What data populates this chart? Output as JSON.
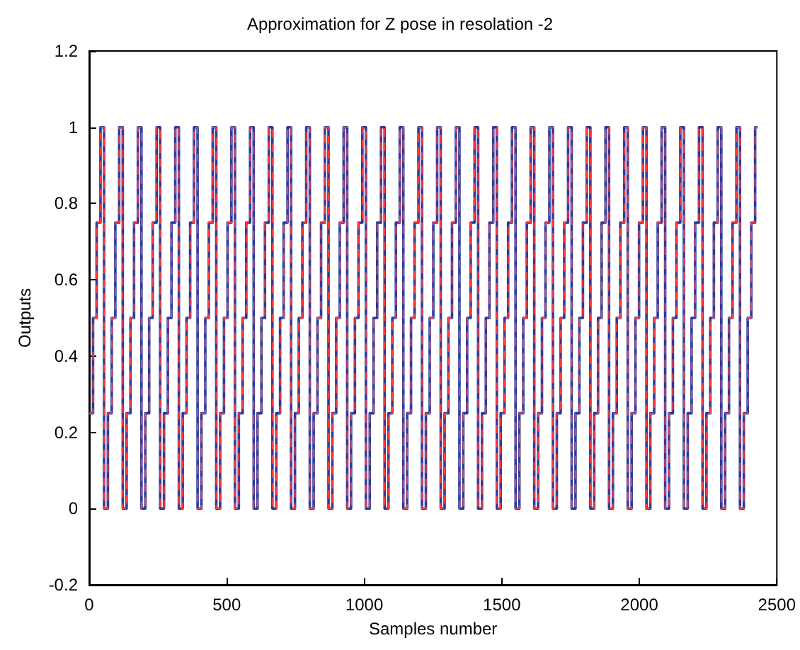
{
  "chart_data": {
    "type": "step",
    "title": "Approximation for Z pose in resolation -2",
    "xlabel": "Samples number",
    "ylabel": "Outputs",
    "x": [
      0,
      14,
      27,
      41,
      54,
      68,
      82,
      95,
      109,
      122,
      136,
      150,
      163,
      177,
      190,
      204,
      218,
      231,
      245,
      258,
      272,
      286,
      299,
      313,
      326,
      340,
      354,
      367,
      381,
      394,
      408,
      422,
      435,
      449,
      462,
      476,
      490,
      503,
      517,
      530,
      544,
      558,
      571,
      585,
      598,
      612,
      626,
      639,
      653,
      666,
      680,
      694,
      707,
      721,
      734,
      748,
      762,
      775,
      789,
      802,
      816,
      830,
      843,
      857,
      870,
      884,
      898,
      911,
      925,
      938,
      952,
      966,
      979,
      993,
      1006,
      1020,
      1034,
      1047,
      1061,
      1074,
      1088,
      1102,
      1115,
      1129,
      1142,
      1156,
      1170,
      1183,
      1197,
      1210,
      1224,
      1238,
      1251,
      1265,
      1278,
      1292,
      1306,
      1319,
      1333,
      1346,
      1360,
      1374,
      1387,
      1401,
      1414,
      1428,
      1442,
      1455,
      1469,
      1482,
      1496,
      1510,
      1523,
      1537,
      1550,
      1564,
      1578,
      1591,
      1605,
      1618,
      1632,
      1646,
      1659,
      1673,
      1686,
      1700,
      1714,
      1727,
      1741,
      1754,
      1768,
      1782,
      1795,
      1809,
      1822,
      1836,
      1850,
      1863,
      1877,
      1890,
      1904,
      1918,
      1931,
      1945,
      1958,
      1972,
      1986,
      1999,
      2013,
      2026,
      2040,
      2054,
      2067,
      2081,
      2094,
      2108,
      2122,
      2135,
      2149,
      2162,
      2176,
      2190,
      2203,
      2217,
      2230,
      2244,
      2258,
      2271,
      2285,
      2298,
      2312,
      2326,
      2339,
      2353,
      2366,
      2380,
      2394,
      2407,
      2421,
      2430
    ],
    "series": [
      {
        "color": "#2b3a9e",
        "line_style": "solid",
        "values": [
          0.25,
          0.5,
          0.75,
          1,
          0,
          0.25,
          0.5,
          0.75,
          1,
          0,
          0.25,
          0.5,
          0.75,
          1,
          0,
          0.25,
          0.5,
          0.75,
          1,
          0,
          0.25,
          0.5,
          0.75,
          1,
          0,
          0.25,
          0.5,
          0.75,
          1,
          0,
          0.25,
          0.5,
          0.75,
          1,
          0,
          0.25,
          0.5,
          0.75,
          1,
          0,
          0.25,
          0.5,
          0.75,
          1,
          0,
          0.25,
          0.5,
          0.75,
          1,
          0,
          0.25,
          0.5,
          0.75,
          1,
          0,
          0.25,
          0.5,
          0.75,
          1,
          0,
          0.25,
          0.5,
          0.75,
          1,
          0,
          0.25,
          0.5,
          0.75,
          1,
          0,
          0.25,
          0.5,
          0.75,
          1,
          0,
          0.25,
          0.5,
          0.75,
          1,
          0,
          0.25,
          0.5,
          0.75,
          1,
          0,
          0.25,
          0.5,
          0.75,
          1,
          0,
          0.25,
          0.5,
          0.75,
          1,
          0,
          0.25,
          0.5,
          0.75,
          1,
          0,
          0.25,
          0.5,
          0.75,
          1,
          0,
          0.25,
          0.5,
          0.75,
          1,
          0,
          0.25,
          0.5,
          0.75,
          1,
          0,
          0.25,
          0.5,
          0.75,
          1,
          0,
          0.25,
          0.5,
          0.75,
          1,
          0,
          0.25,
          0.5,
          0.75,
          1,
          0,
          0.25,
          0.5,
          0.75,
          1,
          0,
          0.25,
          0.5,
          0.75,
          1,
          0,
          0.25,
          0.5,
          0.75,
          1,
          0,
          0.25,
          0.5,
          0.75,
          1,
          0,
          0.25,
          0.5,
          0.75,
          1,
          0,
          0.25,
          0.5,
          0.75,
          1,
          0,
          0.25,
          0.5,
          0.75,
          1,
          0,
          0.25,
          0.5,
          0.75,
          1,
          0,
          0.25,
          0.5,
          0.75,
          1,
          0,
          0.25,
          0.5,
          0.75,
          1,
          1
        ]
      },
      {
        "color": "#ff4040",
        "line_style": "dashed",
        "values": [
          0.25,
          0.5,
          0.75,
          1,
          0,
          0.25,
          0.5,
          0.75,
          1,
          0,
          0.25,
          0.5,
          0.75,
          1,
          0,
          0.25,
          0.5,
          0.75,
          1,
          0,
          0.25,
          0.5,
          0.75,
          1,
          0,
          0.25,
          0.5,
          0.75,
          1,
          0,
          0.25,
          0.5,
          0.75,
          1,
          0,
          0.25,
          0.5,
          0.75,
          1,
          0,
          0.25,
          0.5,
          0.75,
          1,
          0,
          0.25,
          0.5,
          0.75,
          1,
          0,
          0.25,
          0.5,
          0.75,
          1,
          0,
          0.25,
          0.5,
          0.75,
          1,
          0,
          0.25,
          0.5,
          0.75,
          1,
          0,
          0.25,
          0.5,
          0.75,
          1,
          0,
          0.25,
          0.5,
          0.75,
          1,
          0,
          0.25,
          0.5,
          0.75,
          1,
          0,
          0.25,
          0.5,
          0.75,
          1,
          0,
          0.25,
          0.5,
          0.75,
          1,
          0,
          0.25,
          0.5,
          0.75,
          1,
          0,
          0.25,
          0.5,
          0.75,
          1,
          0,
          0.25,
          0.5,
          0.75,
          1,
          0,
          0.25,
          0.5,
          0.75,
          1,
          0,
          0.25,
          0.5,
          0.75,
          1,
          0,
          0.25,
          0.5,
          0.75,
          1,
          0,
          0.25,
          0.5,
          0.75,
          1,
          0,
          0.25,
          0.5,
          0.75,
          1,
          0,
          0.25,
          0.5,
          0.75,
          1,
          0,
          0.25,
          0.5,
          0.75,
          1,
          0,
          0.25,
          0.5,
          0.75,
          1,
          0,
          0.25,
          0.5,
          0.75,
          1,
          0,
          0.25,
          0.5,
          0.75,
          1,
          0,
          0.25,
          0.5,
          0.75,
          1,
          0,
          0.25,
          0.5,
          0.75,
          1,
          0,
          0.25,
          0.5,
          0.75,
          1,
          0,
          0.25,
          0.5,
          0.75,
          1,
          0,
          0.25,
          0.5,
          0.75,
          1,
          1
        ]
      }
    ],
    "xlim": [
      0,
      2500
    ],
    "xticks": [
      0,
      500,
      1000,
      1500,
      2000,
      2500
    ],
    "ylim": [
      -0.2,
      1.2
    ],
    "yticks": [
      -0.2,
      0,
      0.2,
      0.4,
      0.6,
      0.8,
      1,
      1.2
    ]
  }
}
